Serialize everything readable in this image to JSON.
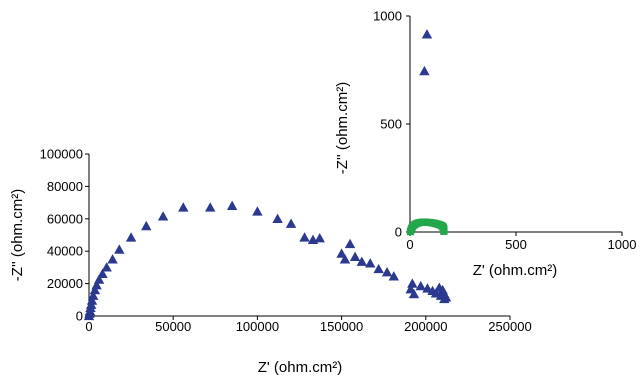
{
  "chart_data": [
    {
      "type": "scatter",
      "xlabel": "Z' (ohm.cm²)",
      "ylabel": "-Z'' (ohm.cm²)",
      "xlim": [
        0,
        250000
      ],
      "ylim": [
        0,
        100000
      ],
      "x_ticks": [
        "0",
        "50000",
        "100000",
        "150000",
        "200000",
        "250000"
      ],
      "y_ticks": [
        "0",
        "20000",
        "40000",
        "60000",
        "80000",
        "100000"
      ],
      "series": [
        {
          "marker": "triangle",
          "color": "#2b3990",
          "points": [
            [
              0,
              0
            ],
            [
              300,
              1500
            ],
            [
              600,
              3000
            ],
            [
              900,
              5000
            ],
            [
              1300,
              7000
            ],
            [
              1800,
              9500
            ],
            [
              2500,
              12500
            ],
            [
              3500,
              16000
            ],
            [
              4500,
              19000
            ],
            [
              6000,
              22500
            ],
            [
              8000,
              26000
            ],
            [
              10500,
              30000
            ],
            [
              14000,
              35000
            ],
            [
              18000,
              41000
            ],
            [
              25000,
              48500
            ],
            [
              34000,
              55500
            ],
            [
              44000,
              61500
            ],
            [
              56000,
              67000
            ],
            [
              72000,
              67000
            ],
            [
              85000,
              68000
            ],
            [
              100000,
              64500
            ],
            [
              112000,
              60000
            ],
            [
              120000,
              57000
            ],
            [
              128000,
              48500
            ],
            [
              133000,
              47000
            ],
            [
              137000,
              48000
            ],
            [
              150000,
              38500
            ],
            [
              155000,
              44500
            ],
            [
              152000,
              35000
            ],
            [
              158000,
              36500
            ],
            [
              162000,
              33500
            ],
            [
              167000,
              32500
            ],
            [
              172000,
              29000
            ],
            [
              177000,
              27000
            ],
            [
              181000,
              24500
            ],
            [
              192000,
              20000
            ],
            [
              191000,
              16500
            ],
            [
              193000,
              13500
            ],
            [
              197000,
              18500
            ],
            [
              201000,
              17000
            ],
            [
              204000,
              15500
            ],
            [
              206000,
              14000
            ],
            [
              208000,
              17500
            ],
            [
              209000,
              12500
            ],
            [
              210000,
              16000
            ],
            [
              211000,
              13500
            ],
            [
              211000,
              10500
            ],
            [
              212000,
              11500
            ]
          ]
        }
      ]
    },
    {
      "type": "scatter",
      "xlabel": "Z' (ohm.cm²)",
      "ylabel": "-Z'' (ohm.cm²)",
      "xlim": [
        0,
        1000
      ],
      "ylim": [
        0,
        1000
      ],
      "x_ticks": [
        "0",
        "500",
        "1000"
      ],
      "y_ticks": [
        "0",
        "500",
        "1000"
      ],
      "series": [
        {
          "marker": "triangle",
          "color": "#2b3990",
          "points": [
            [
              80,
              915
            ],
            [
              68,
              745
            ]
          ]
        },
        {
          "marker": "square",
          "color": "#22a84a",
          "points": [
            [
              2,
              2
            ],
            [
              5,
              10
            ],
            [
              8,
              18
            ],
            [
              12,
              25
            ],
            [
              18,
              31
            ],
            [
              25,
              36
            ],
            [
              33,
              40
            ],
            [
              42,
              43
            ],
            [
              52,
              45
            ],
            [
              62,
              46
            ],
            [
              72,
              46
            ],
            [
              82,
              45
            ],
            [
              92,
              44
            ],
            [
              102,
              43
            ],
            [
              112,
              41
            ],
            [
              120,
              39
            ],
            [
              128,
              37
            ],
            [
              135,
              35
            ],
            [
              142,
              33
            ],
            [
              148,
              30
            ],
            [
              152,
              27
            ],
            [
              155,
              24
            ],
            [
              157,
              21
            ],
            [
              158,
              18
            ],
            [
              159,
              15
            ],
            [
              160,
              12
            ],
            [
              160,
              9
            ],
            [
              160,
              6
            ],
            [
              160,
              3
            ]
          ]
        }
      ]
    }
  ]
}
